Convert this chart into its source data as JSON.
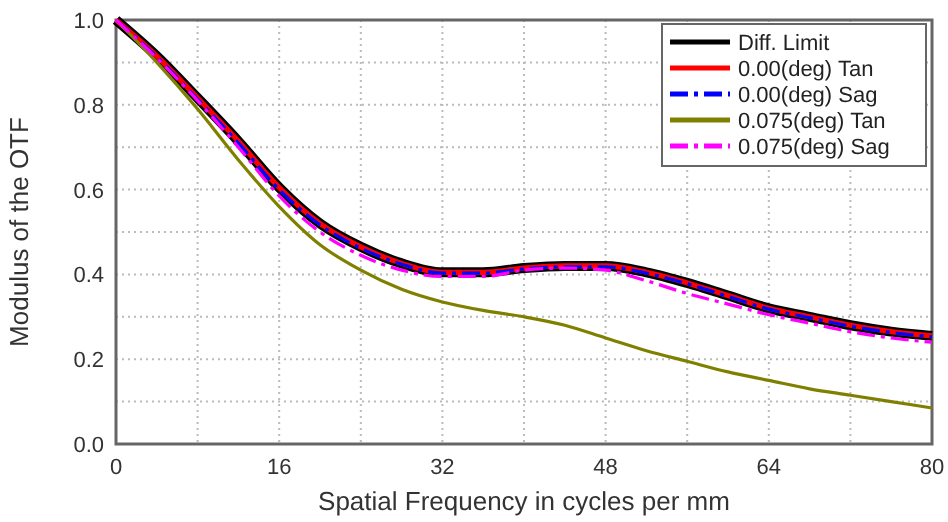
{
  "chart_data": {
    "type": "line",
    "xlabel": "Spatial Frequency in cycles per mm",
    "ylabel": "Modulus of the OTF",
    "x": [
      0,
      4,
      8,
      12,
      16,
      20,
      24,
      28,
      32,
      36,
      40,
      44,
      48,
      52,
      56,
      60,
      64,
      68,
      72,
      76,
      80
    ],
    "xlim": [
      0,
      80
    ],
    "ylim": [
      0,
      1
    ],
    "xticks": [
      0,
      {
        "value": 8,
        "label": null
      },
      16,
      {
        "value": 24,
        "label": null
      },
      32,
      {
        "value": 40,
        "label": null
      },
      48,
      {
        "value": 56,
        "label": null
      },
      64,
      {
        "value": 72,
        "label": null
      },
      80
    ],
    "yticks": [
      "0.0",
      {
        "value": 0.1,
        "label": null
      },
      0.2,
      {
        "value": 0.3,
        "label": null
      },
      0.4,
      {
        "value": 0.5,
        "label": null
      },
      0.6,
      {
        "value": 0.7,
        "label": null
      },
      0.8,
      {
        "value": 0.9,
        "label": null
      },
      "1.0"
    ],
    "grid": true,
    "legend": "top right",
    "marker": "none",
    "series": [
      {
        "name": "Diff. Limit",
        "color": "#000000",
        "line_style": "solid",
        "values": [
          1.0,
          0.915,
          0.816,
          0.714,
          0.605,
          0.52,
          0.465,
          0.426,
          0.405,
          0.405,
          0.415,
          0.42,
          0.42,
          0.405,
          0.38,
          0.35,
          0.32,
          0.3,
          0.28,
          0.265,
          0.255
        ]
      },
      {
        "name": "0.00(deg) Tan",
        "color": "#ff0000",
        "line_style": "solid",
        "values": [
          1.0,
          0.915,
          0.816,
          0.714,
          0.605,
          0.52,
          0.465,
          0.426,
          0.405,
          0.405,
          0.415,
          0.42,
          0.42,
          0.405,
          0.38,
          0.35,
          0.32,
          0.3,
          0.28,
          0.265,
          0.255
        ]
      },
      {
        "name": "0.00(deg) Sag",
        "color": "#0000ff",
        "line_style": "dashed",
        "values": [
          1.0,
          0.913,
          0.813,
          0.71,
          0.6,
          0.517,
          0.462,
          0.424,
          0.403,
          0.403,
          0.413,
          0.418,
          0.418,
          0.403,
          0.378,
          0.348,
          0.318,
          0.298,
          0.278,
          0.263,
          0.253
        ]
      },
      {
        "name": "0.075(deg) Tan",
        "color": "#808000",
        "line_style": "solid",
        "values": [
          1.0,
          0.9,
          0.79,
          0.67,
          0.56,
          0.47,
          0.41,
          0.365,
          0.335,
          0.315,
          0.3,
          0.28,
          0.25,
          0.22,
          0.195,
          0.17,
          0.15,
          0.13,
          0.115,
          0.1,
          0.085
        ]
      },
      {
        "name": "0.075(deg) Sag",
        "color": "#ff00ff",
        "line_style": "dashed",
        "values": [
          1.0,
          0.91,
          0.81,
          0.7,
          0.585,
          0.5,
          0.445,
          0.41,
          0.395,
          0.395,
          0.41,
          0.415,
          0.41,
          0.385,
          0.355,
          0.33,
          0.305,
          0.285,
          0.265,
          0.25,
          0.24
        ]
      }
    ]
  }
}
